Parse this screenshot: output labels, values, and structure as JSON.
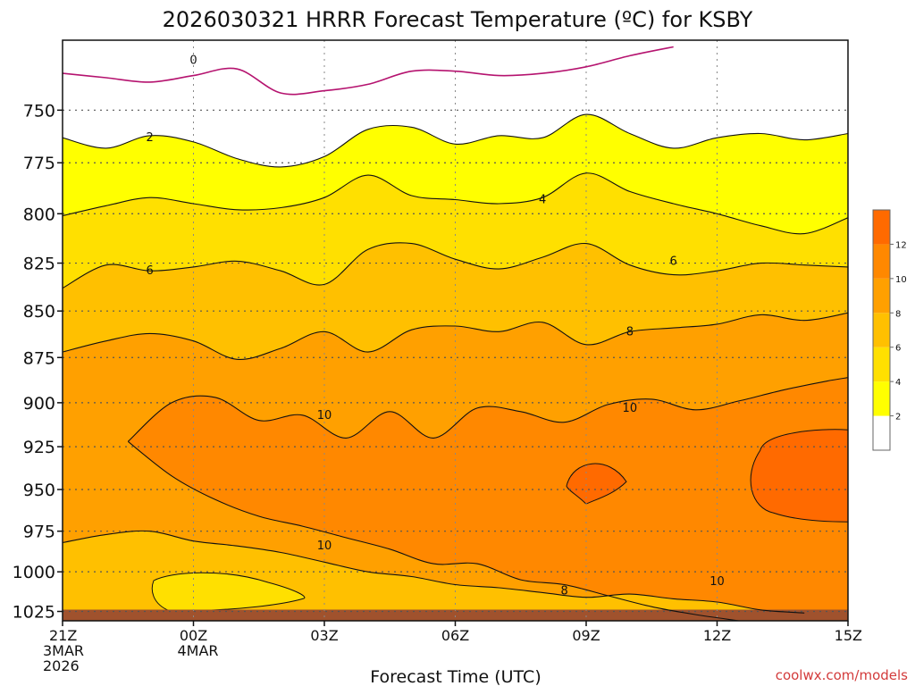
{
  "chart_data": {
    "type": "heatmap",
    "title": "2026030321 HRRR Forecast Temperature (ºC) for KSBY",
    "xlabel": "Forecast Time (UTC)",
    "ylabel": "",
    "y_scale": "log-pressure",
    "y_inverted": true,
    "ylim": [
      1031,
      718
    ],
    "yticks": [
      "750",
      "775",
      "800",
      "825",
      "850",
      "875",
      "900",
      "925",
      "950",
      "975",
      "1000",
      "1025"
    ],
    "xticks": [
      "21Z",
      "00Z",
      "03Z",
      "06Z",
      "09Z",
      "12Z",
      "15Z"
    ],
    "xtick_sublabels": [
      [
        "3MAR",
        "2026"
      ],
      [
        "4MAR"
      ],
      [],
      [],
      [],
      [],
      []
    ],
    "xlim": [
      0,
      18
    ],
    "grid": true,
    "colorbar": {
      "levels": [
        2,
        4,
        6,
        8,
        10,
        12
      ],
      "colors": [
        "#ffffff",
        "#ffff00",
        "#ffe000",
        "#ffc000",
        "#ffa000",
        "#ff8800",
        "#ff6a00"
      ]
    },
    "contour_interval": 2,
    "contours": [
      {
        "level": 0,
        "label": "0",
        "color": "#b5136f",
        "points": [
          [
            0,
            733
          ],
          [
            1,
            735
          ],
          [
            2,
            737
          ],
          [
            3,
            734
          ],
          [
            4,
            731
          ],
          [
            5,
            742
          ],
          [
            6,
            741
          ],
          [
            7,
            738
          ],
          [
            8,
            732
          ],
          [
            9,
            732
          ],
          [
            10,
            734
          ],
          [
            11,
            733
          ],
          [
            12,
            730
          ],
          [
            13,
            725
          ],
          [
            14,
            721
          ]
        ]
      },
      {
        "level": 2,
        "label": "2",
        "points": [
          [
            0,
            763
          ],
          [
            1,
            768
          ],
          [
            2,
            762
          ],
          [
            3,
            765
          ],
          [
            4,
            773
          ],
          [
            5,
            777
          ],
          [
            6,
            772
          ],
          [
            7,
            759
          ],
          [
            8,
            758
          ],
          [
            9,
            766
          ],
          [
            10,
            762
          ],
          [
            11,
            763
          ],
          [
            12,
            752
          ],
          [
            13,
            761
          ],
          [
            14,
            768
          ],
          [
            15,
            763
          ],
          [
            16,
            761
          ],
          [
            17,
            764
          ],
          [
            18,
            761
          ]
        ]
      },
      {
        "level": 4,
        "label": "4",
        "points": [
          [
            0,
            801
          ],
          [
            1,
            796
          ],
          [
            2,
            792
          ],
          [
            3,
            795
          ],
          [
            4,
            798
          ],
          [
            5,
            797
          ],
          [
            6,
            792
          ],
          [
            7,
            781
          ],
          [
            8,
            791
          ],
          [
            9,
            793
          ],
          [
            10,
            795
          ],
          [
            11,
            792
          ],
          [
            12,
            780
          ],
          [
            13,
            789
          ],
          [
            14,
            795
          ],
          [
            15,
            800
          ],
          [
            16,
            806
          ],
          [
            17,
            810
          ],
          [
            18,
            802
          ]
        ]
      },
      {
        "level": 6,
        "label": "6",
        "points": [
          [
            0,
            838
          ],
          [
            1,
            826
          ],
          [
            2,
            829
          ],
          [
            3,
            827
          ],
          [
            4,
            824
          ],
          [
            5,
            829
          ],
          [
            6,
            836
          ],
          [
            7,
            818
          ],
          [
            8,
            815
          ],
          [
            9,
            823
          ],
          [
            10,
            828
          ],
          [
            11,
            822
          ],
          [
            12,
            815
          ],
          [
            13,
            826
          ],
          [
            14,
            831
          ],
          [
            15,
            829
          ],
          [
            16,
            825
          ],
          [
            17,
            826
          ],
          [
            18,
            827
          ]
        ]
      },
      {
        "level": 8,
        "label": "8",
        "points": [
          [
            0,
            872
          ],
          [
            1,
            866
          ],
          [
            2,
            862
          ],
          [
            3,
            866
          ],
          [
            4,
            876
          ],
          [
            5,
            870
          ],
          [
            6,
            861
          ],
          [
            7,
            872
          ],
          [
            8,
            860
          ],
          [
            9,
            858
          ],
          [
            10,
            861
          ],
          [
            11,
            856
          ],
          [
            12,
            868
          ],
          [
            13,
            861
          ],
          [
            14,
            859
          ],
          [
            15,
            857
          ],
          [
            16,
            852
          ],
          [
            17,
            855
          ],
          [
            18,
            851
          ]
        ]
      },
      {
        "level": 10,
        "label": "10",
        "points": [
          [
            1.5,
            922
          ],
          [
            2.5,
            900
          ],
          [
            3.5,
            897
          ],
          [
            4.5,
            910
          ],
          [
            5.5,
            907
          ],
          [
            6.5,
            920
          ],
          [
            7.5,
            905
          ],
          [
            8.5,
            920
          ],
          [
            9.5,
            903
          ],
          [
            10.5,
            905
          ],
          [
            11.5,
            911
          ],
          [
            12.5,
            901
          ],
          [
            13.5,
            898
          ],
          [
            14.5,
            904
          ],
          [
            15.5,
            899
          ],
          [
            16.5,
            893
          ],
          [
            17.5,
            888
          ],
          [
            18,
            886
          ]
        ]
      },
      {
        "level": 10,
        "label": "10",
        "points": [
          [
            1.5,
            922
          ],
          [
            2.5,
            942
          ],
          [
            3.5,
            956
          ],
          [
            4.5,
            966
          ],
          [
            5.5,
            972
          ],
          [
            6.5,
            979
          ],
          [
            7.5,
            986
          ],
          [
            8.5,
            995
          ],
          [
            9.5,
            995
          ],
          [
            10.5,
            1005
          ],
          [
            11.5,
            1008
          ],
          [
            12.5,
            1015
          ],
          [
            13.5,
            1022
          ],
          [
            14.5,
            1027
          ],
          [
            15.5,
            1031
          ]
        ]
      },
      {
        "level": 8,
        "label": "8",
        "points": [
          [
            0,
            982
          ],
          [
            1,
            977
          ],
          [
            2,
            975
          ],
          [
            3,
            981
          ],
          [
            4,
            984
          ],
          [
            5,
            988
          ],
          [
            6,
            994
          ],
          [
            7,
            1000
          ],
          [
            8,
            1003
          ],
          [
            9,
            1008
          ],
          [
            10,
            1010
          ],
          [
            11,
            1013
          ],
          [
            12,
            1016
          ],
          [
            13,
            1014
          ],
          [
            14,
            1017
          ],
          [
            15,
            1019
          ],
          [
            16,
            1024
          ],
          [
            17,
            1026
          ]
        ]
      }
    ],
    "regions_above_12": [
      {
        "center": [
          12,
          948
        ]
      },
      {
        "center": [
          16.5,
          948
        ]
      }
    ],
    "surface_fill_from_hPa": 1025
  },
  "watermark": "coolwx.com/models"
}
